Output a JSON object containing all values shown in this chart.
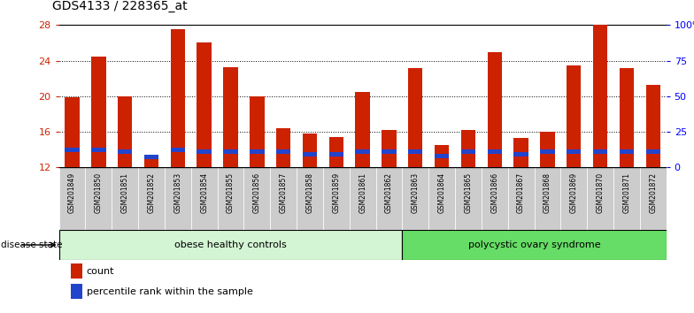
{
  "title": "GDS4133 / 228365_at",
  "samples": [
    "GSM201849",
    "GSM201850",
    "GSM201851",
    "GSM201852",
    "GSM201853",
    "GSM201854",
    "GSM201855",
    "GSM201856",
    "GSM201857",
    "GSM201858",
    "GSM201859",
    "GSM201861",
    "GSM201862",
    "GSM201863",
    "GSM201864",
    "GSM201865",
    "GSM201866",
    "GSM201867",
    "GSM201868",
    "GSM201869",
    "GSM201870",
    "GSM201871",
    "GSM201872"
  ],
  "count_values": [
    19.9,
    24.5,
    20.0,
    13.0,
    27.5,
    26.0,
    23.3,
    20.0,
    16.4,
    15.8,
    15.4,
    20.5,
    16.2,
    23.2,
    14.5,
    16.2,
    25.0,
    15.3,
    16.0,
    23.5,
    28.0,
    23.2,
    21.3
  ],
  "percentile_values": [
    14.0,
    14.0,
    13.8,
    13.2,
    14.0,
    13.8,
    13.8,
    13.8,
    13.8,
    13.5,
    13.5,
    13.8,
    13.8,
    13.8,
    13.3,
    13.8,
    13.8,
    13.5,
    13.8,
    13.8,
    13.8,
    13.8,
    13.8
  ],
  "obese_count": 13,
  "ylim_left": [
    12,
    28
  ],
  "ylim_right": [
    0,
    100
  ],
  "yticks_left": [
    12,
    16,
    20,
    24,
    28
  ],
  "yticks_right": [
    0,
    25,
    50,
    75,
    100
  ],
  "ytick_labels_right": [
    "0",
    "25",
    "50",
    "75",
    "100%"
  ],
  "bar_color_red": "#cc2200",
  "bar_color_blue": "#2244cc",
  "obese_bg": "#d4f5d4",
  "pcos_bg": "#66dd66",
  "group1_label": "obese healthy controls",
  "group2_label": "polycystic ovary syndrome",
  "disease_state_label": "disease state",
  "legend_count": "count",
  "legend_percentile": "percentile rank within the sample",
  "bar_width": 0.55,
  "baseline": 12,
  "xtick_bg": "#d0d0d0",
  "title_fontsize": 10,
  "axis_label_fontsize": 8,
  "legend_fontsize": 8
}
